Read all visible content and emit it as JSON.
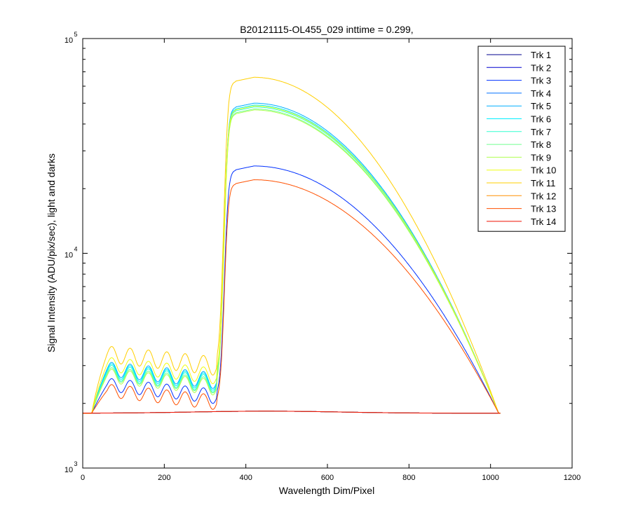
{
  "chart_data": {
    "type": "line",
    "title": "B20121115-OL455_029 inttime = 0.299,",
    "xlabel": "Wavelength Dim/Pixel",
    "ylabel": "Signal Intensity (ADU/pix/sec), light and darks",
    "xlim": [
      0,
      1200
    ],
    "ylim": [
      1000,
      100000
    ],
    "yscale": "log",
    "xticks": [
      0,
      200,
      400,
      600,
      800,
      1000,
      1200
    ],
    "xtick_labels": [
      "0",
      "200",
      "400",
      "600",
      "800",
      "1000",
      "1200"
    ],
    "yticks": [
      1000,
      10000,
      100000
    ],
    "ytick_labels": [
      {
        "base": "10",
        "exp": "3"
      },
      {
        "base": "10",
        "exp": "4"
      },
      {
        "base": "10",
        "exp": "5"
      }
    ],
    "grid": false,
    "legend_position": "top-right",
    "series": [
      {
        "name": "Trk 1",
        "color": "#00008f",
        "peak": 1800,
        "plateau": 1800,
        "wiggle": 0
      },
      {
        "name": "Trk 2",
        "color": "#0000cf",
        "peak": 1800,
        "plateau": 1800,
        "wiggle": 0
      },
      {
        "name": "Trk 3",
        "color": "#0030ff",
        "peak": 25500,
        "plateau": 2450,
        "wiggle": 170
      },
      {
        "name": "Trk 4",
        "color": "#0070ff",
        "peak": 1800,
        "plateau": 1800,
        "wiggle": 0
      },
      {
        "name": "Trk 5",
        "color": "#00afff",
        "peak": 50000,
        "plateau": 2900,
        "wiggle": 220
      },
      {
        "name": "Trk 6",
        "color": "#00efff",
        "peak": 49000,
        "plateau": 2850,
        "wiggle": 220
      },
      {
        "name": "Trk 7",
        "color": "#30ffcf",
        "peak": 48000,
        "plateau": 2800,
        "wiggle": 220
      },
      {
        "name": "Trk 8",
        "color": "#70ff8f",
        "peak": 47000,
        "plateau": 2750,
        "wiggle": 200
      },
      {
        "name": "Trk 9",
        "color": "#afff50",
        "peak": 46500,
        "plateau": 2700,
        "wiggle": 200
      },
      {
        "name": "Trk 10",
        "color": "#efff10",
        "peak": 48500,
        "plateau": 3050,
        "wiggle": 230
      },
      {
        "name": "Trk 11",
        "color": "#ffcf00",
        "peak": 66000,
        "plateau": 3400,
        "wiggle": 300
      },
      {
        "name": "Trk 12",
        "color": "#ff8f00",
        "peak": 1800,
        "plateau": 1800,
        "wiggle": 0
      },
      {
        "name": "Trk 13",
        "color": "#ff5000",
        "peak": 22000,
        "plateau": 2300,
        "wiggle": 160
      },
      {
        "name": "Trk 14",
        "color": "#ef1000",
        "peak": 1800,
        "plateau": 1800,
        "wiggle": 0
      }
    ],
    "dark_level": 1800,
    "pixel_range": [
      0,
      1024
    ]
  }
}
